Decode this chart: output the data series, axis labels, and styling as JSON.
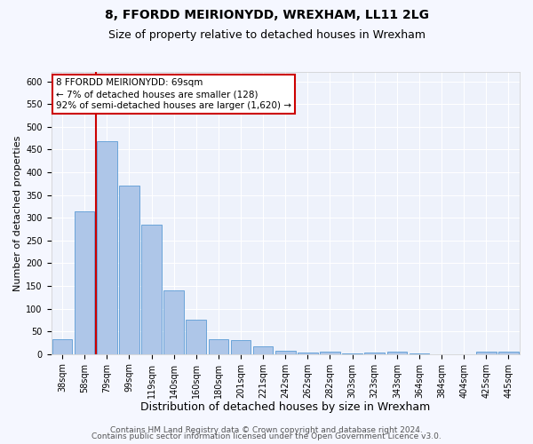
{
  "title1": "8, FFORDD MEIRIONYDD, WREXHAM, LL11 2LG",
  "title2": "Size of property relative to detached houses in Wrexham",
  "xlabel": "Distribution of detached houses by size in Wrexham",
  "ylabel": "Number of detached properties",
  "bar_labels": [
    "38sqm",
    "58sqm",
    "79sqm",
    "99sqm",
    "119sqm",
    "140sqm",
    "160sqm",
    "180sqm",
    "201sqm",
    "221sqm",
    "242sqm",
    "262sqm",
    "282sqm",
    "303sqm",
    "323sqm",
    "343sqm",
    "364sqm",
    "384sqm",
    "404sqm",
    "425sqm",
    "445sqm"
  ],
  "bar_values": [
    33,
    315,
    468,
    370,
    284,
    141,
    75,
    33,
    30,
    17,
    8,
    4,
    6,
    1,
    4,
    5,
    1,
    0,
    0,
    5,
    5
  ],
  "bar_color": "#aec6e8",
  "bar_edge_color": "#5b9bd5",
  "red_line_x": 1.52,
  "annotation_title": "8 FFORDD MEIRIONYDD: 69sqm",
  "annotation_line1": "← 7% of detached houses are smaller (128)",
  "annotation_line2": "92% of semi-detached houses are larger (1,620) →",
  "annotation_box_color": "#ffffff",
  "annotation_box_edge": "#cc0000",
  "ylim": [
    0,
    620
  ],
  "yticks": [
    0,
    50,
    100,
    150,
    200,
    250,
    300,
    350,
    400,
    450,
    500,
    550,
    600
  ],
  "footer1": "Contains HM Land Registry data © Crown copyright and database right 2024.",
  "footer2": "Contains public sector information licensed under the Open Government Licence v3.0.",
  "background_color": "#eef2fb",
  "grid_color": "#ffffff",
  "title1_fontsize": 10,
  "title2_fontsize": 9,
  "xlabel_fontsize": 9,
  "ylabel_fontsize": 8,
  "tick_fontsize": 7,
  "annotation_fontsize": 7.5,
  "footer_fontsize": 6.5
}
